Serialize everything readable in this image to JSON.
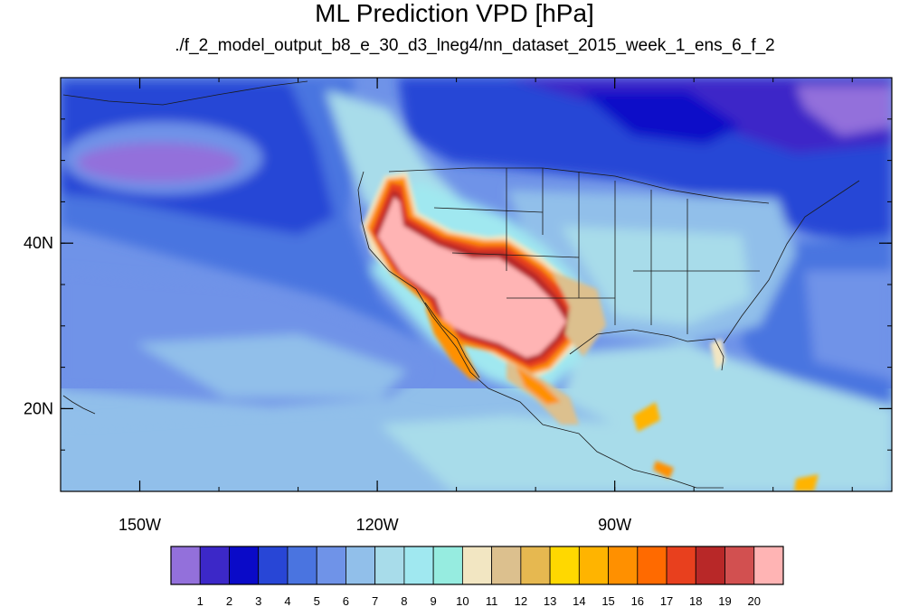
{
  "title": "ML Prediction VPD [hPa]",
  "subtitle": "./f_2_model_output_b8_e_30_d3_lneg4/nn_dataset_2015_week_1_ens_6_f_2",
  "map": {
    "lon_range": [
      -160,
      -55
    ],
    "lat_range": [
      10,
      60
    ],
    "lon_ticks": [
      {
        "value": -150,
        "label": "150W"
      },
      {
        "value": -120,
        "label": "120W"
      },
      {
        "value": -90,
        "label": "90W"
      }
    ],
    "lat_ticks": [
      {
        "value": 40,
        "label": "40N"
      },
      {
        "value": 20,
        "label": "20N"
      }
    ]
  },
  "colorbar": {
    "colors": [
      "#9370db",
      "#3c28c8",
      "#0a0ac8",
      "#2846d6",
      "#4a74e0",
      "#6f93e8",
      "#91bfea",
      "#a8dcea",
      "#a0e8f0",
      "#96ece0",
      "#f2e6c2",
      "#dcc08e",
      "#e6b850",
      "#ffd800",
      "#ffb400",
      "#ff9000",
      "#ff6a00",
      "#e8401e",
      "#b82828",
      "#d25050",
      "#ffb4b4"
    ],
    "labels": [
      "1",
      "2",
      "3",
      "4",
      "5",
      "6",
      "7",
      "8",
      "9",
      "10",
      "11",
      "12",
      "13",
      "14",
      "15",
      "16",
      "17",
      "18",
      "19",
      "20"
    ]
  }
}
